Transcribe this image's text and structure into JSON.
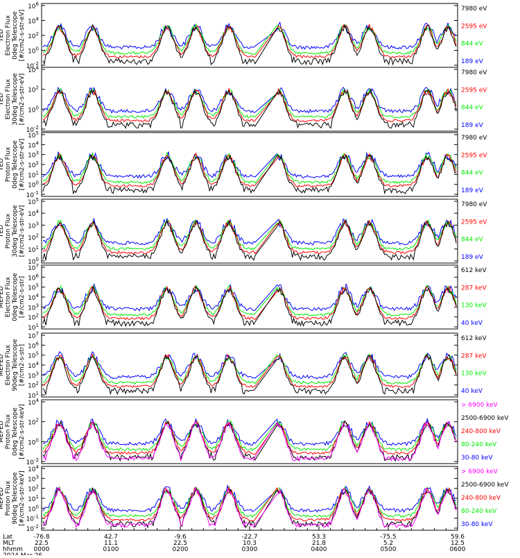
{
  "colors": {
    "black": "#000000",
    "red": "#ff0000",
    "green": "#00ee00",
    "blue": "#0000ff",
    "magenta": "#ff00ff"
  },
  "chart_data": [
    {
      "type": "line",
      "ylabel_lines": [
        "TED",
        "Electron Flux",
        "0deg Telescope",
        "[#/cm2-s-str-eV]"
      ],
      "yticks": [
        {
          "t": "10",
          "e": "6"
        },
        {
          "t": "10",
          "e": "4"
        },
        {
          "t": "10",
          "e": "2"
        },
        {
          "t": "10",
          "e": "0"
        },
        {
          "t": "10",
          "e": "-2"
        }
      ],
      "legend": [
        {
          "label": "7980 eV",
          "color": "black"
        },
        {
          "label": "2595 eV",
          "color": "red"
        },
        {
          "label": "844 eV",
          "color": "green"
        },
        {
          "label": "189 eV",
          "color": "blue"
        }
      ]
    },
    {
      "type": "line",
      "ylabel_lines": [
        "TED",
        "Electron Flux",
        "30deg Telescope",
        "[#/cm2-s-str-eV]"
      ],
      "yticks": [
        {
          "t": "10",
          "e": "4"
        },
        {
          "t": "10",
          "e": "2"
        },
        {
          "t": "10",
          "e": "0"
        },
        {
          "t": "10",
          "e": "-2"
        }
      ],
      "legend": [
        {
          "label": "7980 eV",
          "color": "black"
        },
        {
          "label": "2595 eV",
          "color": "red"
        },
        {
          "label": "844 eV",
          "color": "green"
        },
        {
          "label": "189 eV",
          "color": "blue"
        }
      ]
    },
    {
      "type": "line",
      "ylabel_lines": [
        "TED",
        "Proton Flux",
        "0deg Telescope",
        "[#/cm2-s-str-eV]"
      ],
      "yticks": [
        {
          "t": "10",
          "e": "5"
        },
        {
          "t": "10",
          "e": "4"
        },
        {
          "t": "10",
          "e": "3"
        },
        {
          "t": "10",
          "e": "2"
        },
        {
          "t": "10",
          "e": "1"
        },
        {
          "t": "10",
          "e": "0"
        },
        {
          "t": "10",
          "e": "-1"
        }
      ],
      "legend": [
        {
          "label": "7980 eV",
          "color": "black"
        },
        {
          "label": "2595 eV",
          "color": "red"
        },
        {
          "label": "844 eV",
          "color": "green"
        },
        {
          "label": "189 eV",
          "color": "blue"
        }
      ]
    },
    {
      "type": "line",
      "ylabel_lines": [
        "TED",
        "Proton Flux",
        "30deg Telescope",
        "[#/cm2-s-str-eV]"
      ],
      "yticks": [
        {
          "t": "10",
          "e": "5"
        },
        {
          "t": "10",
          "e": "4"
        },
        {
          "t": "10",
          "e": "3"
        },
        {
          "t": "10",
          "e": "2"
        },
        {
          "t": "10",
          "e": "1"
        },
        {
          "t": "10",
          "e": "0"
        }
      ],
      "legend": [
        {
          "label": "7980 eV",
          "color": "black"
        },
        {
          "label": "2595 eV",
          "color": "red"
        },
        {
          "label": "844 eV",
          "color": "green"
        },
        {
          "label": "189 eV",
          "color": "blue"
        }
      ]
    },
    {
      "type": "line",
      "ylabel_lines": [
        "MEPED",
        "Electron Flux",
        "0deg Telescope",
        "[#/cm2-s-str]"
      ],
      "yticks": [
        {
          "t": "10",
          "e": "7"
        },
        {
          "t": "10",
          "e": "6"
        },
        {
          "t": "10",
          "e": "5"
        },
        {
          "t": "10",
          "e": "4"
        },
        {
          "t": "10",
          "e": "3"
        },
        {
          "t": "10",
          "e": "2"
        },
        {
          "t": "10",
          "e": "1"
        }
      ],
      "legend": [
        {
          "label": "612 keV",
          "color": "black"
        },
        {
          "label": "287 keV",
          "color": "red"
        },
        {
          "label": "130 keV",
          "color": "green"
        },
        {
          "label": "40 keV",
          "color": "blue"
        }
      ]
    },
    {
      "type": "line",
      "ylabel_lines": [
        "MEPED",
        "Electron Flux",
        "90deg Telescope",
        "[#/cm2-s-str]"
      ],
      "yticks": [
        {
          "t": "10",
          "e": "7"
        },
        {
          "t": "10",
          "e": "6"
        },
        {
          "t": "10",
          "e": "5"
        },
        {
          "t": "10",
          "e": "4"
        },
        {
          "t": "10",
          "e": "3"
        },
        {
          "t": "10",
          "e": "2"
        },
        {
          "t": "10",
          "e": "1"
        }
      ],
      "legend": [
        {
          "label": "612 keV",
          "color": "black"
        },
        {
          "label": "287 keV",
          "color": "red"
        },
        {
          "label": "130 keV",
          "color": "green"
        },
        {
          "label": "40 keV",
          "color": "blue"
        }
      ]
    },
    {
      "type": "line",
      "ylabel_lines": [
        "MEPED",
        "Proton Flux",
        "0deg Telescope",
        "[#/cm2-s-str-keV]"
      ],
      "yticks": [
        {
          "t": "10",
          "e": "4"
        },
        {
          "t": "10",
          "e": "2"
        },
        {
          "t": "10",
          "e": "0"
        },
        {
          "t": "10",
          "e": "-2"
        }
      ],
      "legend": [
        {
          "label": "> 6900 keV",
          "color": "magenta"
        },
        {
          "label": "2500-6900 keV",
          "color": "black"
        },
        {
          "label": "240-800 keV",
          "color": "red"
        },
        {
          "label": "80-240 keV",
          "color": "green"
        },
        {
          "label": "30-80 keV",
          "color": "blue"
        }
      ]
    },
    {
      "type": "line",
      "ylabel_lines": [
        "MEPED",
        "Proton Flux",
        "90deg Telescope",
        "[#/cm2-s-str-keV]"
      ],
      "yticks": [
        {
          "t": "10",
          "e": "4"
        },
        {
          "t": "10",
          "e": "3"
        },
        {
          "t": "10",
          "e": "2"
        },
        {
          "t": "10",
          "e": "1"
        },
        {
          "t": "10",
          "e": "0"
        },
        {
          "t": "10",
          "e": "-1"
        },
        {
          "t": "10",
          "e": "-2"
        }
      ],
      "legend": [
        {
          "label": "> 6900 keV",
          "color": "magenta"
        },
        {
          "label": "2500-6900 keV",
          "color": "black"
        },
        {
          "label": "240-800 keV",
          "color": "red"
        },
        {
          "label": "80-240 keV",
          "color": "green"
        },
        {
          "label": "30-80 keV",
          "color": "blue"
        }
      ]
    }
  ],
  "x_axis": {
    "row_labels": [
      "Lat",
      "MLT",
      "hhmm",
      "2024 Mar 26"
    ],
    "ticks": [
      {
        "lat": "-76.8",
        "mlt": "22.5",
        "hhmm": "0000"
      },
      {
        "lat": "42.7",
        "mlt": "11.1",
        "hhmm": "0100"
      },
      {
        "lat": "-9.6",
        "mlt": "22.5",
        "hhmm": "0200"
      },
      {
        "lat": "-22.7",
        "mlt": "10.3",
        "hhmm": "0300"
      },
      {
        "lat": "53.3",
        "mlt": "21.8",
        "hhmm": "0400"
      },
      {
        "lat": "-75.5",
        "mlt": "5.2",
        "hhmm": "0500"
      },
      {
        "lat": "59.6",
        "mlt": "12.5",
        "hhmm": "0600"
      }
    ]
  }
}
